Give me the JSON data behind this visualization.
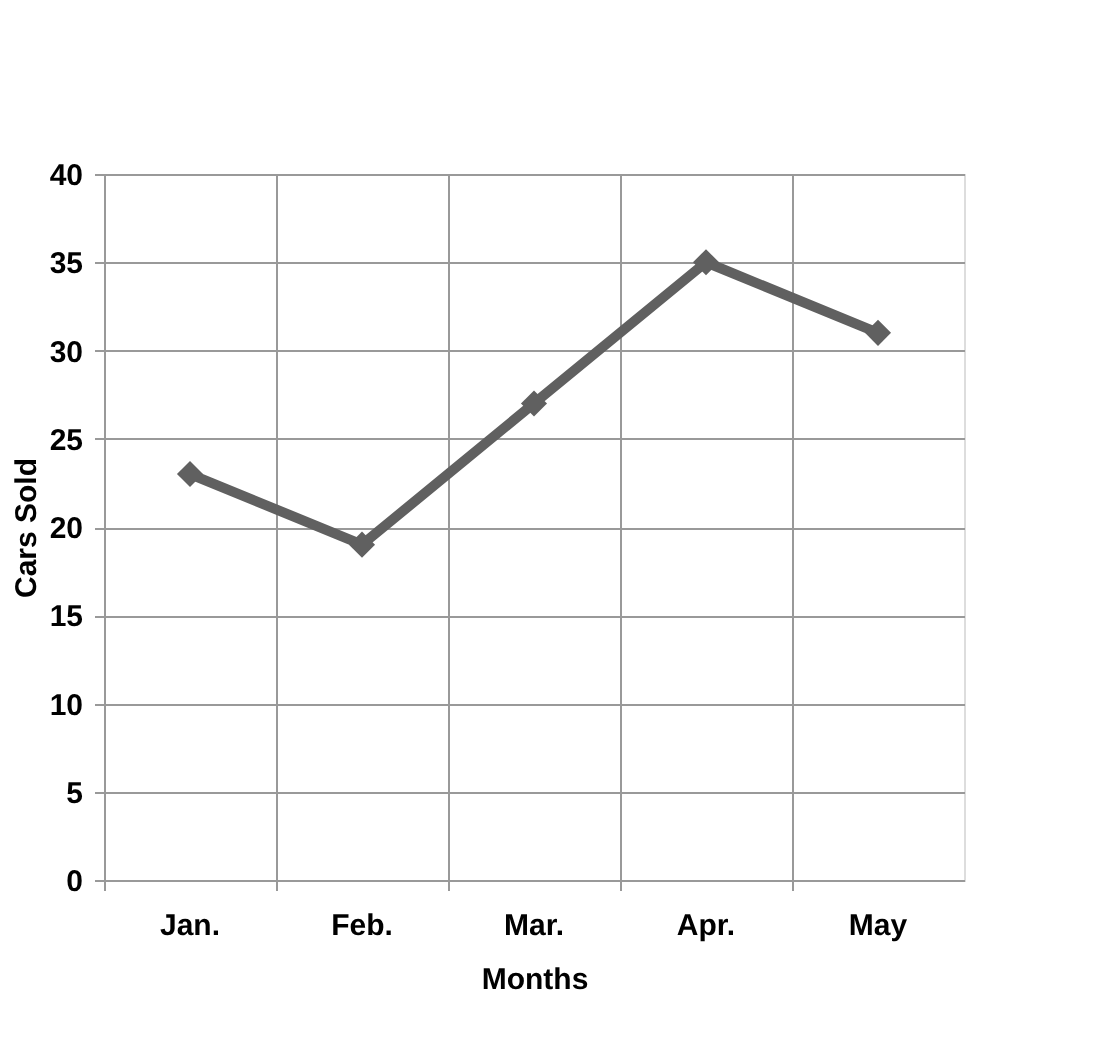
{
  "chart_data": {
    "type": "line",
    "xlabel": "Months",
    "ylabel": "Cars Sold",
    "categories": [
      "Jan.",
      "Feb.",
      "Mar.",
      "Apr.",
      "May"
    ],
    "series": [
      {
        "color": "#606060",
        "values": [
          23,
          19,
          27,
          35,
          31
        ]
      }
    ],
    "ylim": [
      0,
      40
    ],
    "yticks": [
      0,
      5,
      10,
      15,
      20,
      25,
      30,
      35,
      40
    ],
    "grid": true,
    "marker": "diamond",
    "line_style": "solid"
  }
}
